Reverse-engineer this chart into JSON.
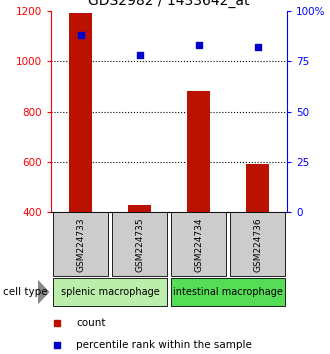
{
  "title": "GDS2982 / 1433642_at",
  "samples": [
    "GSM224733",
    "GSM224735",
    "GSM224734",
    "GSM224736"
  ],
  "counts": [
    1190,
    430,
    880,
    590
  ],
  "percentiles": [
    88,
    78,
    83,
    82
  ],
  "ylim_left": [
    400,
    1200
  ],
  "ylim_right": [
    0,
    100
  ],
  "yticks_left": [
    400,
    600,
    800,
    1000,
    1200
  ],
  "yticks_right": [
    0,
    25,
    50,
    75,
    100
  ],
  "ytick_labels_right": [
    "0",
    "25",
    "50",
    "75",
    "100%"
  ],
  "grid_values": [
    600,
    800,
    1000
  ],
  "bar_color": "#bb1100",
  "dot_color": "#0000cc",
  "bar_width": 0.4,
  "groups": [
    {
      "label": "splenic macrophage",
      "indices": [
        0,
        1
      ],
      "color": "#bbeeaa"
    },
    {
      "label": "intestinal macrophage",
      "indices": [
        2,
        3
      ],
      "color": "#55dd55"
    }
  ],
  "sample_box_color": "#cccccc",
  "cell_type_label": "cell type",
  "legend_count_label": "count",
  "legend_percentile_label": "percentile rank within the sample",
  "title_fontsize": 10,
  "tick_fontsize": 7.5,
  "label_fontsize": 7.5,
  "sample_fontsize": 6.5,
  "group_fontsize": 7
}
